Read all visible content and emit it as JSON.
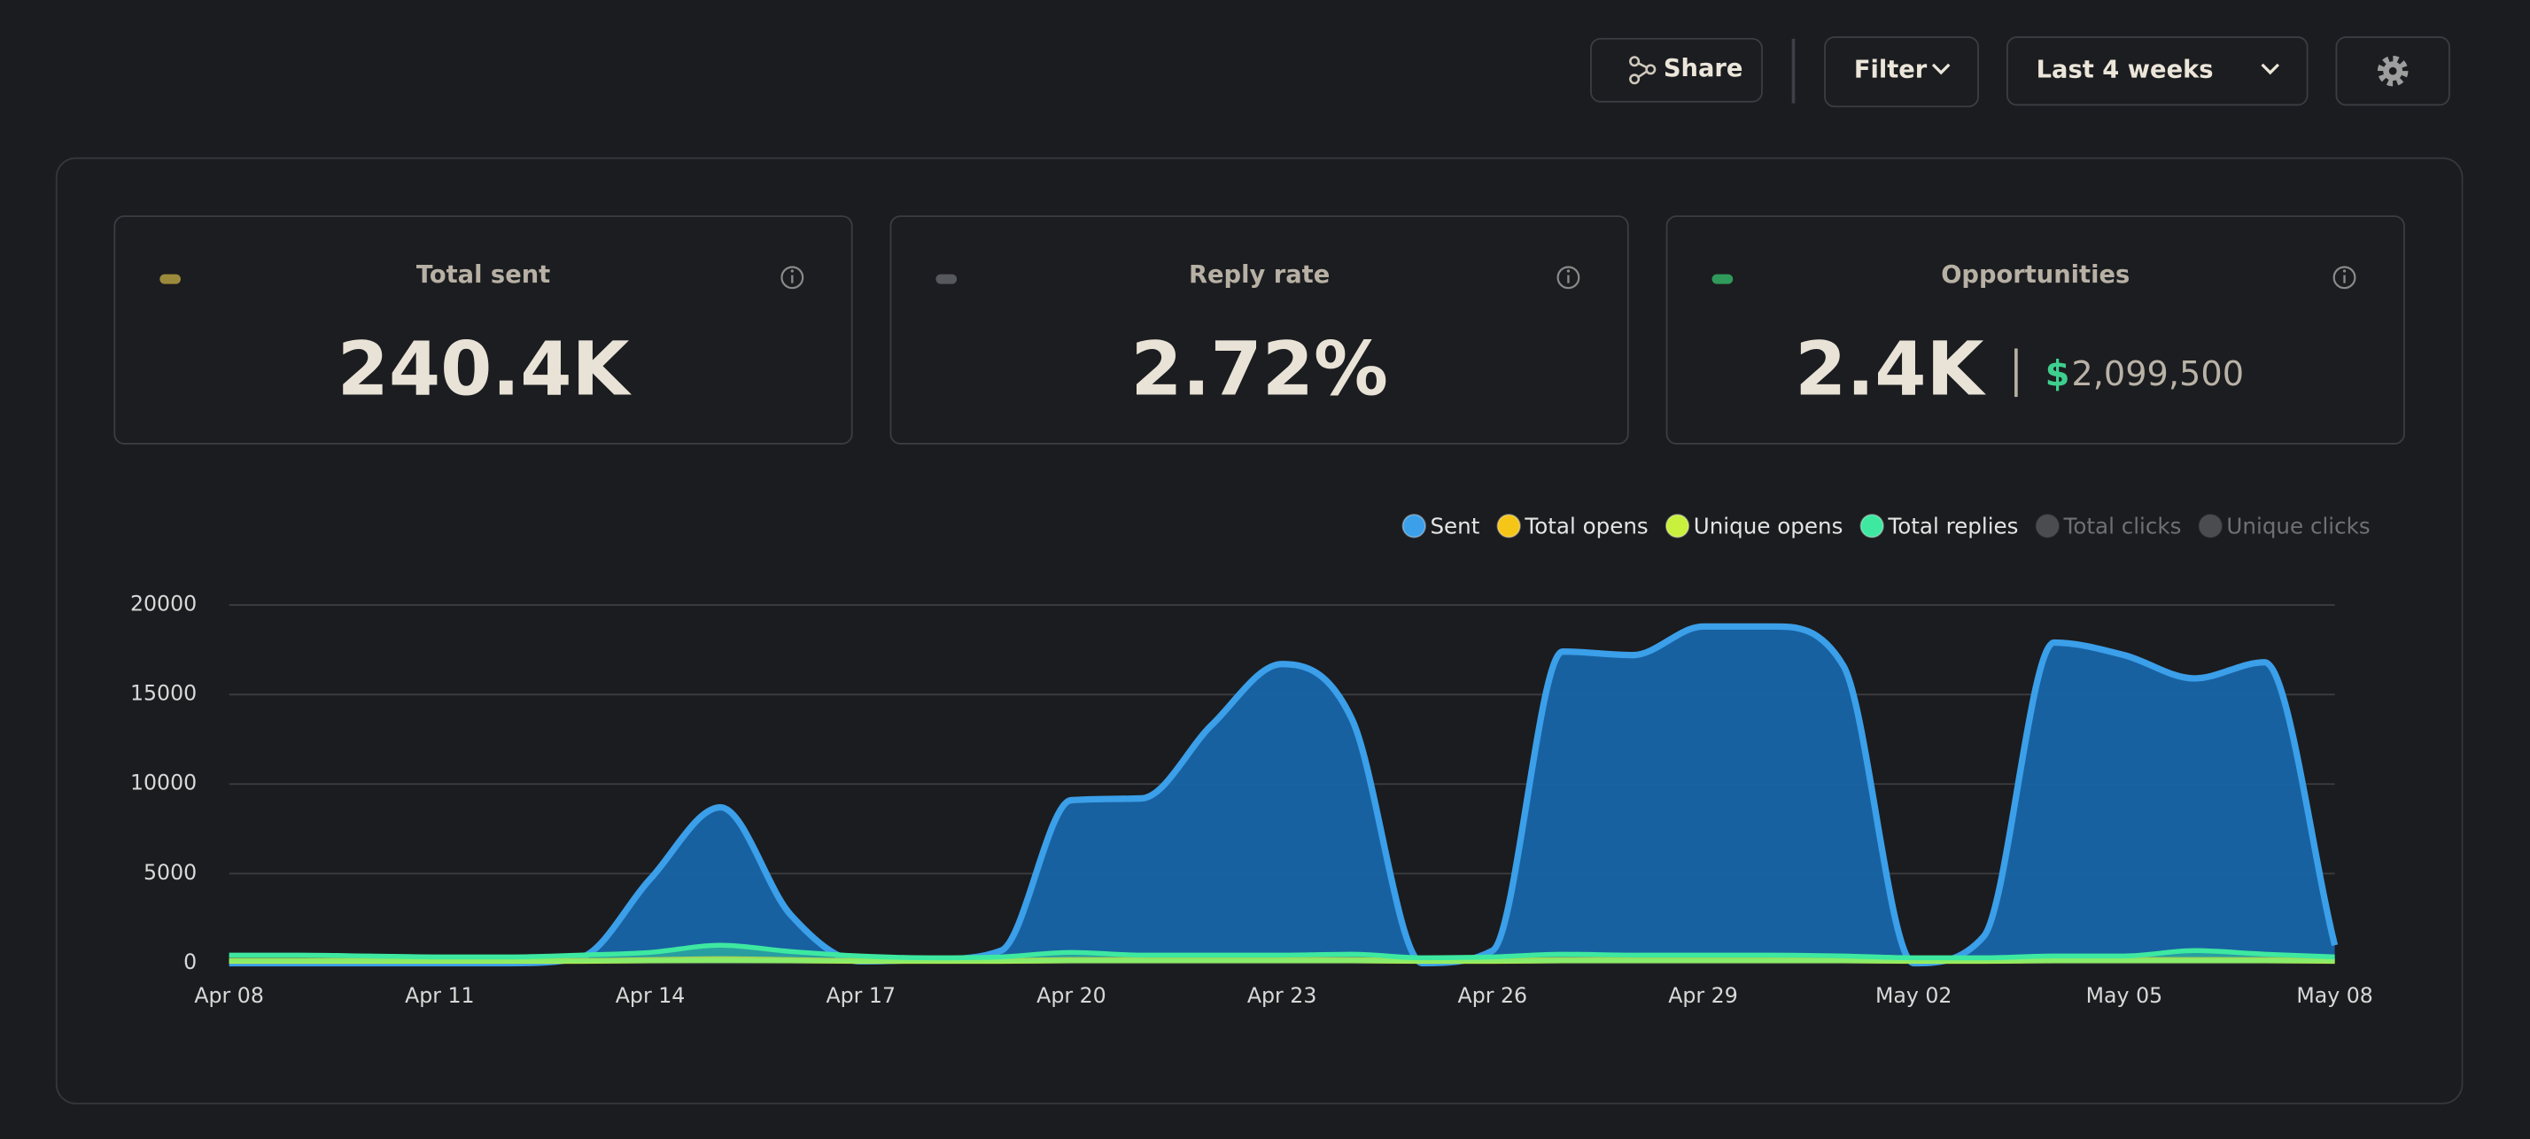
{
  "toolbar": {
    "share": "Share",
    "filter": "Filter",
    "range": "Last 4 weeks"
  },
  "cards": [
    {
      "title": "Total sent",
      "value": "240.4K"
    },
    {
      "title": "Reply rate",
      "value": "2.72%"
    },
    {
      "title": "Opportunities",
      "value": "2.4K",
      "currency": "$",
      "amount": "2,099,500"
    }
  ],
  "chart_data": {
    "type": "area",
    "categories": [
      "Apr 08",
      null,
      null,
      "Apr 11",
      null,
      null,
      "Apr 14",
      null,
      null,
      "Apr 17",
      null,
      null,
      "Apr 20",
      null,
      null,
      "Apr 23",
      null,
      null,
      "Apr 26",
      null,
      null,
      "Apr 29",
      null,
      null,
      "May 02",
      null,
      null,
      "May 05",
      null,
      null,
      "May 08"
    ],
    "series": [
      {
        "name": "Sent",
        "color": "#3b9fe9",
        "values": [
          0,
          0,
          0,
          0,
          0,
          300,
          4700,
          8700,
          2700,
          100,
          200,
          700,
          9100,
          9200,
          13300,
          16700,
          13600,
          0,
          700,
          17400,
          17200,
          18800,
          18800,
          16600,
          0,
          1500,
          17900,
          17200,
          15900,
          16800,
          1000
        ]
      },
      {
        "name": "Total opens",
        "color": "#f5c518",
        "values": [
          150,
          150,
          150,
          150,
          150,
          150,
          200,
          250,
          200,
          150,
          150,
          150,
          200,
          200,
          200,
          200,
          200,
          150,
          150,
          200,
          200,
          200,
          200,
          200,
          150,
          150,
          200,
          200,
          200,
          200,
          150
        ]
      },
      {
        "name": "Unique opens",
        "color": "#c8f03c",
        "values": [
          100,
          100,
          100,
          100,
          100,
          100,
          130,
          160,
          130,
          100,
          100,
          100,
          130,
          130,
          130,
          130,
          130,
          100,
          100,
          130,
          130,
          130,
          130,
          130,
          100,
          100,
          130,
          130,
          130,
          130,
          100
        ]
      },
      {
        "name": "Total replies",
        "color": "#3ee8a0",
        "values": [
          450,
          450,
          400,
          350,
          350,
          450,
          600,
          1000,
          650,
          400,
          300,
          350,
          600,
          450,
          450,
          450,
          500,
          300,
          350,
          500,
          450,
          450,
          450,
          400,
          300,
          300,
          400,
          400,
          700,
          500,
          350
        ]
      },
      {
        "name": "Total clicks",
        "color": "#4a4c50",
        "hidden": true
      },
      {
        "name": "Unique clicks",
        "color": "#4a4c50",
        "hidden": true
      }
    ],
    "ylim": [
      0,
      20000
    ],
    "yticks": [
      0,
      5000,
      10000,
      15000,
      20000
    ],
    "grid": true,
    "legend": "top-right"
  }
}
